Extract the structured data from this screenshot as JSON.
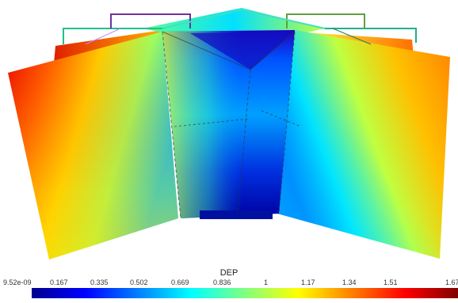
{
  "legend": {
    "title": "DEP",
    "ticks": [
      "9.52e-09",
      "0.167",
      "0.335",
      "0.502",
      "0.669",
      "0.836",
      "1",
      "1.17",
      "1.34",
      "1.51",
      "1.67"
    ],
    "colormap": [
      "#00008f",
      "#0000ff",
      "#0080ff",
      "#00ffff",
      "#80ff80",
      "#ffff00",
      "#ff8000",
      "#ff0000",
      "#800000"
    ]
  }
}
